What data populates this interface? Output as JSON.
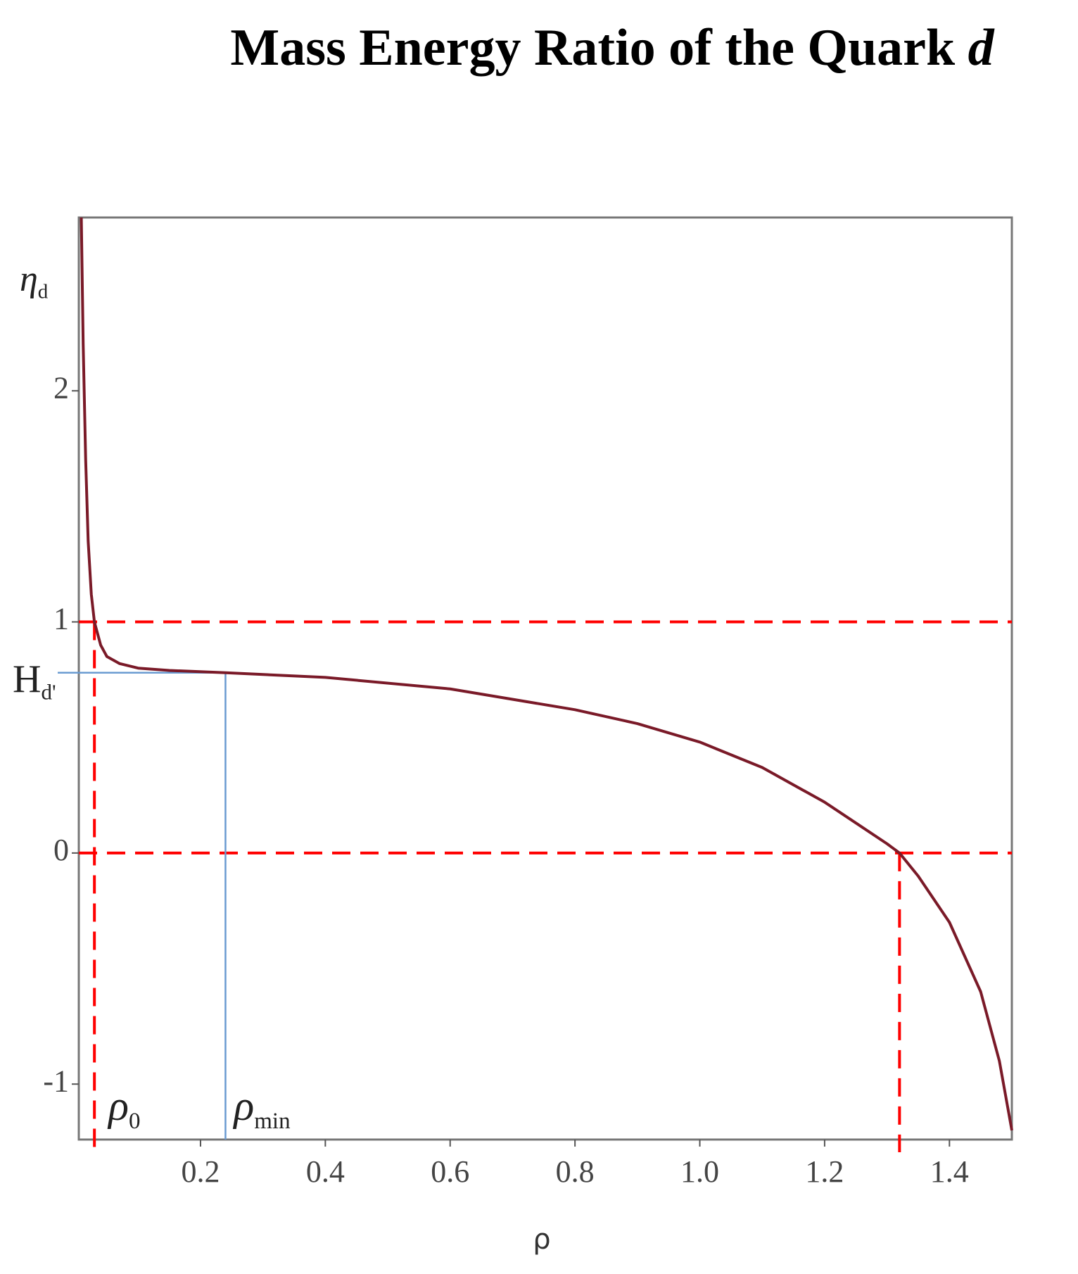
{
  "chart_data": {
    "type": "line",
    "title": "Mass Energy Ratio of the Quark",
    "title_symbol": "d",
    "xlabel": "ρ",
    "xlim": [
      0.005,
      1.5
    ],
    "ylim": [
      -1.24,
      2.75
    ],
    "xticks": [
      0.2,
      0.4,
      0.6,
      0.8,
      {
        "value": 1,
        "label": "1.0"
      },
      1.2,
      1.4
    ],
    "yticks": [
      -1,
      0,
      1,
      2
    ],
    "series": [
      {
        "color": "#7a1a28",
        "x": [
          0.009,
          0.012,
          0.016,
          0.02,
          0.025,
          0.03,
          0.04,
          0.05,
          0.07,
          0.1,
          0.15,
          0.24,
          0.4,
          0.6,
          0.8,
          0.9,
          1.0,
          1.1,
          1.2,
          1.25,
          1.3,
          1.32,
          1.35,
          1.4,
          1.45,
          1.48,
          1.5
        ],
        "values": [
          2.75,
          2.2,
          1.7,
          1.35,
          1.12,
          1.0,
          0.9,
          0.85,
          0.82,
          0.8,
          0.79,
          0.78,
          0.76,
          0.71,
          0.62,
          0.56,
          0.48,
          0.37,
          0.22,
          0.13,
          0.04,
          0.0,
          -0.1,
          -0.3,
          -0.6,
          -0.9,
          -1.2
        ]
      }
    ],
    "hlines": [
      {
        "y": 1,
        "color": "#ff0000"
      },
      {
        "y": 0,
        "color": "#ff0000"
      }
    ],
    "vlines": [
      {
        "x": 0.03,
        "color": "#ff0000"
      },
      {
        "x": 1.32,
        "color": "#ff0000"
      }
    ],
    "marker": {
      "x": 0.24,
      "y": 0.78,
      "color": "#6a9bd1"
    },
    "annotations": {
      "eta": {
        "text": "η",
        "sub": "d"
      },
      "H": {
        "text": "H",
        "sub": "d'"
      },
      "rho0": {
        "text": "ρ",
        "sub": "0"
      },
      "rhomin": {
        "text": "ρ",
        "sub": "min"
      }
    }
  }
}
